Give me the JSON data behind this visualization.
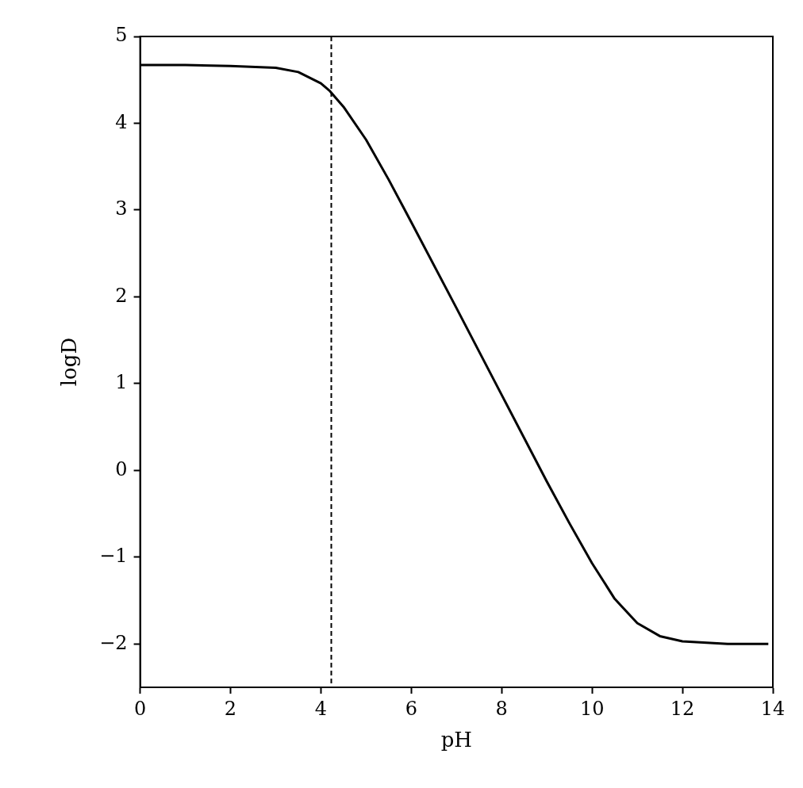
{
  "chart_data": {
    "type": "line",
    "xlabel": "pH",
    "ylabel": "logD",
    "x": [
      0,
      1,
      2,
      3,
      3.5,
      4,
      4.2,
      4.5,
      5,
      5.5,
      6,
      7,
      8,
      9,
      9.5,
      10,
      10.5,
      11,
      11.5,
      12,
      13,
      13.9
    ],
    "series": [
      {
        "color": "#000000",
        "values": [
          4.67,
          4.67,
          4.66,
          4.64,
          4.59,
          4.46,
          4.37,
          4.19,
          3.81,
          3.35,
          2.86,
          1.87,
          0.87,
          -0.13,
          -0.61,
          -1.07,
          -1.48,
          -1.76,
          -1.91,
          -1.97,
          -2.0,
          -2.0
        ]
      }
    ],
    "xlim": [
      0,
      14
    ],
    "xticks": [
      0,
      2,
      4,
      6,
      8,
      10,
      12,
      14
    ],
    "ylim": [
      -2.5,
      5
    ],
    "yticks": [
      {
        "value": -2,
        "label": "−2"
      },
      {
        "value": -1,
        "label": "−1"
      },
      0,
      1,
      2,
      3,
      4,
      5
    ],
    "ref_lines": [
      {
        "axis": "x",
        "value": 4.23,
        "color": "#000000",
        "line_style": "dashed"
      }
    ],
    "grid": false,
    "legend": false,
    "marker": "none",
    "line_style": "solid"
  }
}
